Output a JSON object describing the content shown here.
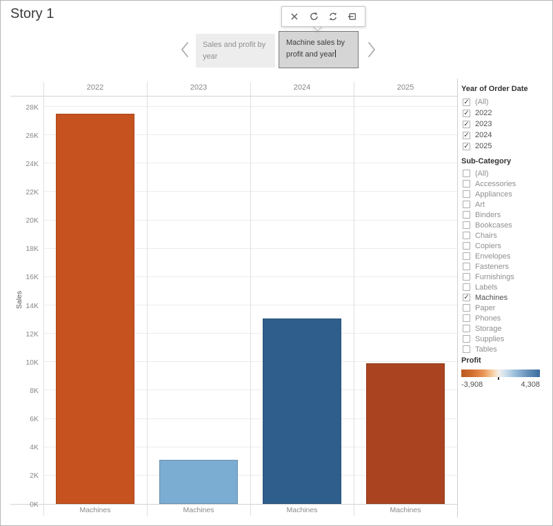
{
  "story": {
    "title": "Story 1"
  },
  "toolbar": {
    "icons": [
      {
        "name": "close-icon"
      },
      {
        "name": "undo-icon"
      },
      {
        "name": "refresh-icon"
      },
      {
        "name": "revert-icon"
      }
    ]
  },
  "navigation": {
    "tabs": [
      {
        "label": "Sales and profit by year",
        "selected": false
      },
      {
        "label": "Machine sales by profit and year",
        "selected": true,
        "editing": true
      }
    ]
  },
  "chart_data": {
    "type": "bar",
    "title": "",
    "columns": [
      "2022",
      "2023",
      "2024",
      "2025"
    ],
    "series": [
      {
        "column": "2022",
        "label": "Machines",
        "value": 27500,
        "color": "#C5521F"
      },
      {
        "column": "2023",
        "label": "Machines",
        "value": 3100,
        "color": "#7BACD2"
      },
      {
        "column": "2024",
        "label": "Machines",
        "value": 13100,
        "color": "#2F5E8C"
      },
      {
        "column": "2025",
        "label": "Machines",
        "value": 9900,
        "color": "#AA4420"
      }
    ],
    "xlabel": "",
    "ylabel": "Sales",
    "ylim": [
      0,
      28000
    ],
    "ytick_step": 2000,
    "ytick_format": "K",
    "grid": true,
    "legend_position": "right"
  },
  "filters": {
    "year": {
      "title": "Year of Order Date",
      "items": [
        {
          "label": "(All)",
          "checked": true,
          "muted": true
        },
        {
          "label": "2022",
          "checked": true,
          "muted": false
        },
        {
          "label": "2023",
          "checked": true,
          "muted": false
        },
        {
          "label": "2024",
          "checked": true,
          "muted": false
        },
        {
          "label": "2025",
          "checked": true,
          "muted": false
        }
      ]
    },
    "subcategory": {
      "title": "Sub-Category",
      "items": [
        {
          "label": "(All)",
          "checked": false,
          "muted": false
        },
        {
          "label": "Accessories",
          "checked": false,
          "muted": false
        },
        {
          "label": "Appliances",
          "checked": false,
          "muted": false
        },
        {
          "label": "Art",
          "checked": false,
          "muted": false
        },
        {
          "label": "Binders",
          "checked": false,
          "muted": false
        },
        {
          "label": "Bookcases",
          "checked": false,
          "muted": false
        },
        {
          "label": "Chairs",
          "checked": false,
          "muted": false
        },
        {
          "label": "Copiers",
          "checked": false,
          "muted": false
        },
        {
          "label": "Envelopes",
          "checked": false,
          "muted": false
        },
        {
          "label": "Fasteners",
          "checked": false,
          "muted": false
        },
        {
          "label": "Furnishings",
          "checked": false,
          "muted": false
        },
        {
          "label": "Labels",
          "checked": false,
          "muted": false
        },
        {
          "label": "Machines",
          "checked": true,
          "muted": false
        },
        {
          "label": "Paper",
          "checked": false,
          "muted": false
        },
        {
          "label": "Phones",
          "checked": false,
          "muted": false
        },
        {
          "label": "Storage",
          "checked": false,
          "muted": false
        },
        {
          "label": "Supplies",
          "checked": false,
          "muted": false
        },
        {
          "label": "Tables",
          "checked": false,
          "muted": false
        }
      ]
    }
  },
  "legend": {
    "title": "Profit",
    "min_label": "-3,908",
    "max_label": "4,308",
    "colors": {
      "negative": "#BA5A20",
      "zero": "#F3EEE8",
      "positive": "#3A6D9D"
    }
  }
}
